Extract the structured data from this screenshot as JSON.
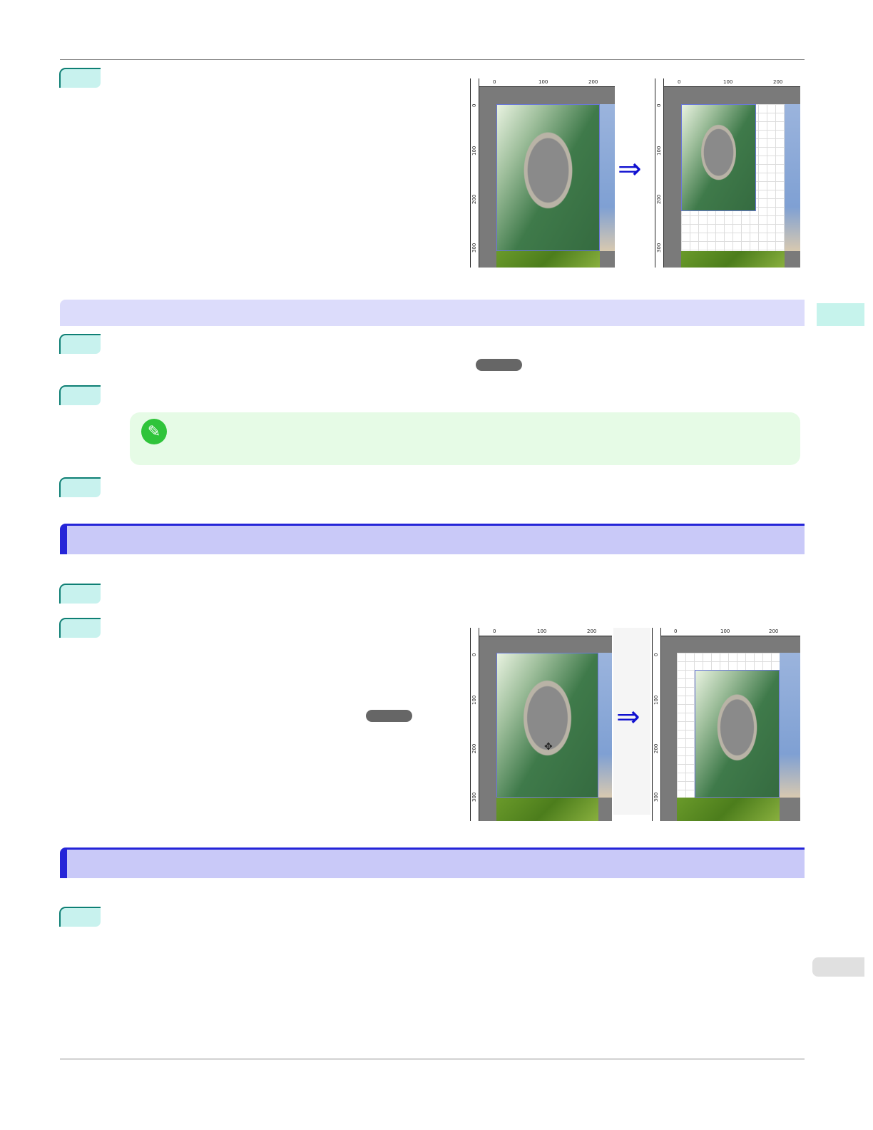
{
  "colors": {
    "step_badge": "#c8f2ee",
    "section_bar": "#dcdcfb",
    "heading_bar": "#c9c9f8",
    "heading_accent": "#2525d8",
    "note_bg": "#e6fbe6",
    "note_icon": "#2fc43a",
    "arrow": "#1010d0"
  },
  "icons": {
    "note": "pencil-icon",
    "arrow": "double-arrow-right-icon"
  },
  "ruler": {
    "top": [
      "0",
      "100",
      "200"
    ],
    "left": [
      "0",
      "100",
      "200",
      "300"
    ]
  },
  "arrow_glyph": "⇒",
  "pencil_glyph": "✎"
}
